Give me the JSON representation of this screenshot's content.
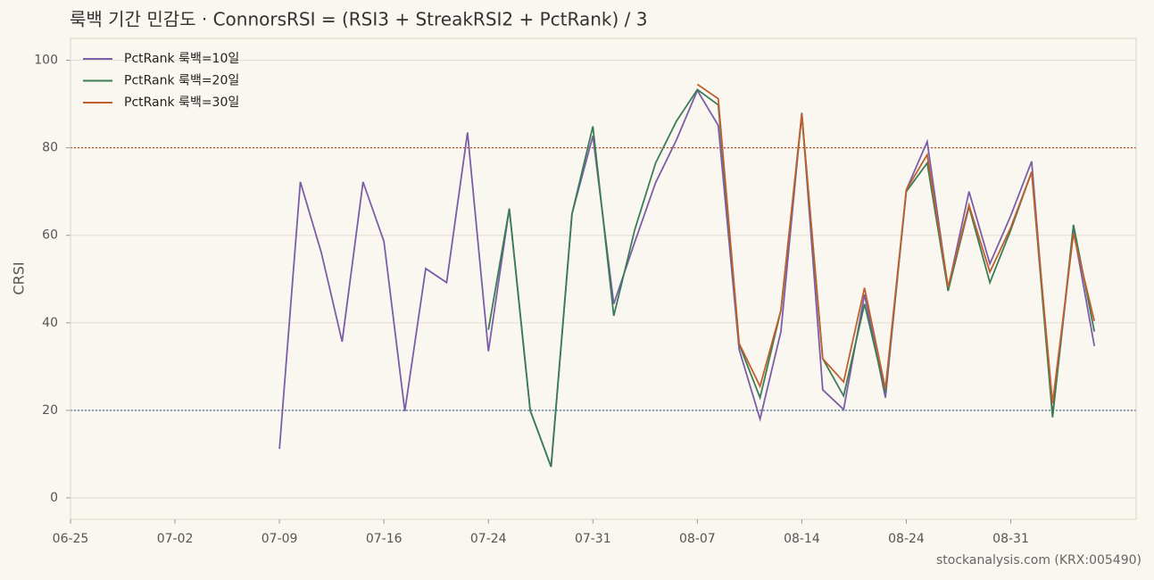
{
  "chart_data": {
    "type": "line",
    "title": "룩백 기간 민감도 · ConnorsRSI = (RSI3 + StreakRSI2 + PctRank) / 3",
    "y_label": "CRSI",
    "source": "stockanalysis.com (KRX:005490)",
    "categories": [
      "06-25",
      null,
      null,
      null,
      null,
      "07-02",
      null,
      null,
      null,
      null,
      "07-09",
      null,
      null,
      null,
      null,
      "07-16",
      null,
      null,
      null,
      null,
      "07-24",
      null,
      null,
      null,
      null,
      "07-31",
      null,
      null,
      null,
      null,
      "08-07",
      null,
      null,
      null,
      null,
      "08-14",
      null,
      null,
      null,
      null,
      "08-24",
      null,
      null,
      null,
      null,
      "08-31",
      null,
      null,
      null,
      null
    ],
    "series": [
      {
        "name": "PctRank 룩백=10일",
        "color": "#7b5ea7",
        "values": [
          null,
          null,
          null,
          null,
          null,
          null,
          null,
          null,
          null,
          null,
          11.2,
          72.2,
          56.1,
          35.7,
          72.2,
          58.6,
          19.8,
          52.4,
          49.2,
          83.5,
          33.5,
          66.1,
          20,
          7.1,
          64.9,
          82.7,
          44.3,
          58.4,
          72,
          81.8,
          93.1,
          85.1,
          33.9,
          18,
          38,
          88,
          24.7,
          20.2,
          46.5,
          22.9,
          70.4,
          81.4,
          47.8,
          70,
          53.5,
          64.5,
          76.9,
          18.8,
          61.2,
          34.7
        ]
      },
      {
        "name": "PctRank 룩백=20일",
        "color": "#3a7d55",
        "values": [
          null,
          null,
          null,
          null,
          null,
          null,
          null,
          null,
          null,
          null,
          null,
          null,
          null,
          null,
          null,
          null,
          null,
          null,
          null,
          null,
          38.4,
          66.1,
          20,
          7.1,
          64.9,
          84.9,
          41.6,
          61.2,
          76.5,
          86.1,
          93.3,
          89.8,
          35.1,
          22.9,
          42.9,
          87.3,
          31.8,
          23.3,
          44.3,
          24.1,
          70,
          76.5,
          47.3,
          66.5,
          49.2,
          61.2,
          74.5,
          18.4,
          62.4,
          38
        ]
      },
      {
        "name": "PctRank 룩백=30일",
        "color": "#c0602e",
        "values": [
          null,
          null,
          null,
          null,
          null,
          null,
          null,
          null,
          null,
          null,
          null,
          null,
          null,
          null,
          null,
          null,
          null,
          null,
          null,
          null,
          null,
          null,
          null,
          null,
          null,
          null,
          null,
          null,
          null,
          null,
          94.5,
          91.2,
          35.3,
          25.5,
          42.9,
          87.8,
          31.8,
          26.5,
          48,
          24.9,
          70.4,
          78.4,
          48.2,
          66.9,
          51.6,
          61.8,
          74.5,
          21.6,
          60.4,
          40.4
        ]
      }
    ],
    "ylim": [
      -4.9,
      105
    ],
    "yticks": [
      0,
      20,
      40,
      60,
      80,
      100
    ],
    "grid": true,
    "legend": "upper left",
    "hlines": [
      {
        "value": 80,
        "color": "#c0502e"
      },
      {
        "value": 20,
        "color": "#4a6a8a"
      }
    ]
  }
}
